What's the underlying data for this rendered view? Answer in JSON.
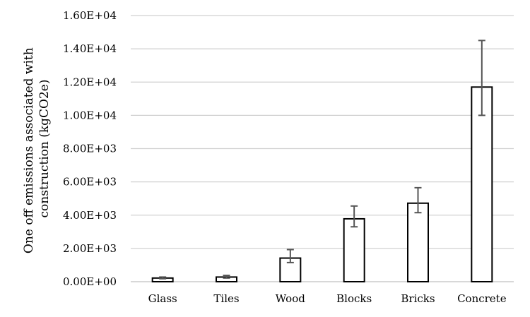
{
  "chart_data": {
    "type": "bar",
    "title": "",
    "xlabel": "",
    "ylabel_lines": [
      "One off emissions associated with",
      "construction (kgCO2e)"
    ],
    "categories": [
      "Glass",
      "Tiles",
      "Wood",
      "Blocks",
      "Bricks",
      "Concrete"
    ],
    "values": [
      220,
      280,
      1420,
      3780,
      4720,
      11700
    ],
    "error_low": [
      180,
      220,
      1150,
      3300,
      4150,
      10000
    ],
    "error_high": [
      280,
      380,
      1930,
      4550,
      5650,
      14500
    ],
    "ylim": [
      0,
      16000
    ],
    "yticks": [
      0,
      2000,
      4000,
      6000,
      8000,
      10000,
      12000,
      14000,
      16000
    ],
    "ytick_labels": [
      "0.00E+00",
      "2.00E+03",
      "4.00E+03",
      "6.00E+03",
      "8.00E+03",
      "1.00E+04",
      "1.20E+04",
      "1.40E+04",
      "1.60E+04"
    ],
    "grid": true,
    "legend": "none",
    "colors": {
      "bar_fill": "#ffffff",
      "bar_stroke": "#000000",
      "errbar": "#555555",
      "grid": "#d0d0d0"
    }
  }
}
